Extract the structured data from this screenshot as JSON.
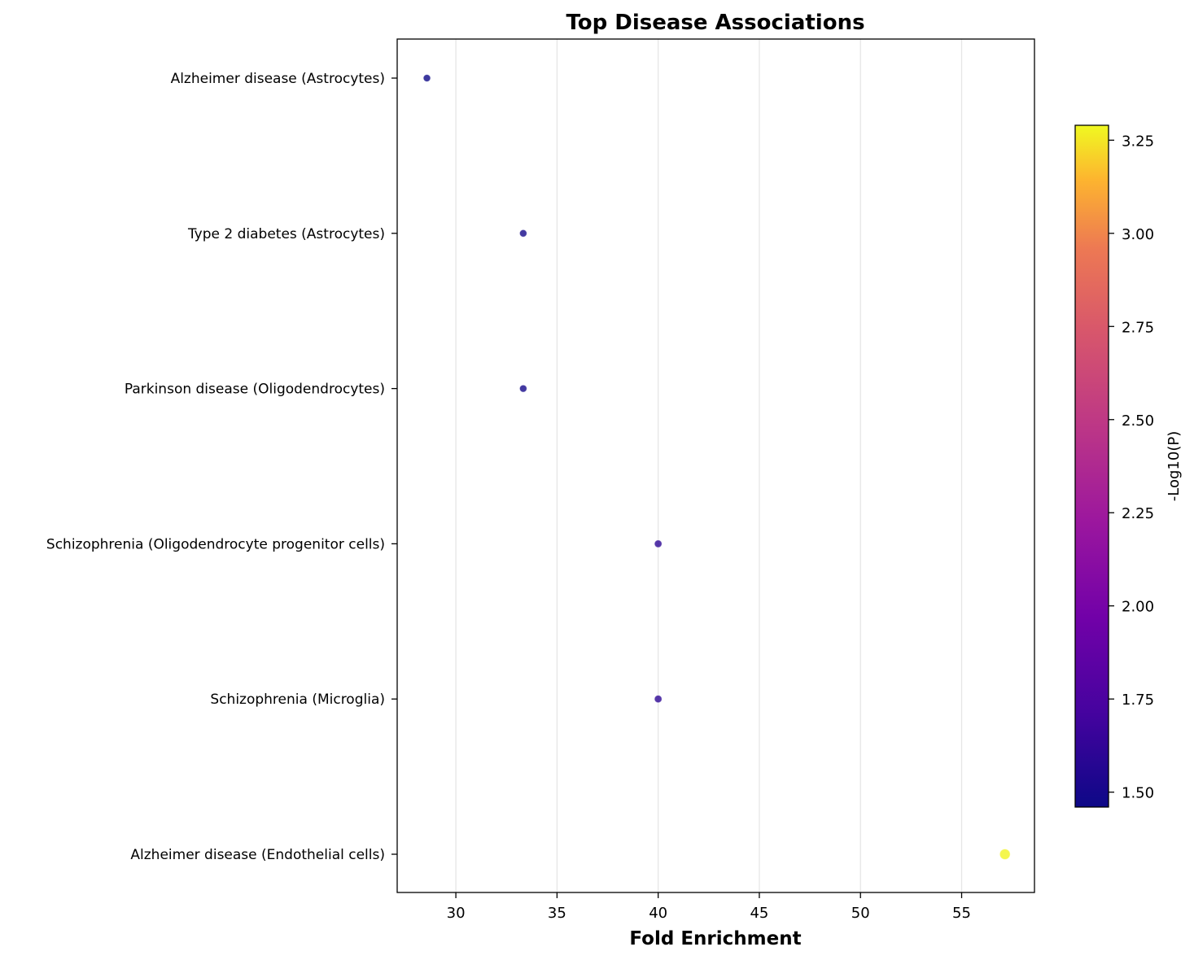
{
  "chart_data": {
    "type": "scatter",
    "title": "Top Disease Associations",
    "xlabel": "Fold Enrichment",
    "ylabel": "",
    "xlim": [
      27.1,
      58.6
    ],
    "xticks": [
      30,
      35,
      40,
      45,
      50,
      55
    ],
    "grid": "vertical",
    "categories": [
      "Alzheimer disease (Astrocytes)",
      "Type 2 diabetes (Astrocytes)",
      "Parkinson disease (Oligodendrocytes)",
      "Schizophrenia (Oligodendrocyte progenitor cells)",
      "Schizophrenia (Microglia)",
      "Alzheimer disease (Endothelial cells)"
    ],
    "x": [
      28.57,
      33.33,
      33.33,
      40.0,
      40.0,
      57.14
    ],
    "color_values": [
      1.46,
      1.49,
      1.49,
      1.6,
      1.6,
      3.28
    ],
    "colorbar": {
      "label": "-Log10(P)",
      "colormap": "plasma",
      "range": [
        1.46,
        3.29
      ],
      "ticks": [
        "1.50",
        "1.75",
        "2.00",
        "2.25",
        "2.50",
        "2.75",
        "3.00",
        "3.25"
      ]
    }
  }
}
